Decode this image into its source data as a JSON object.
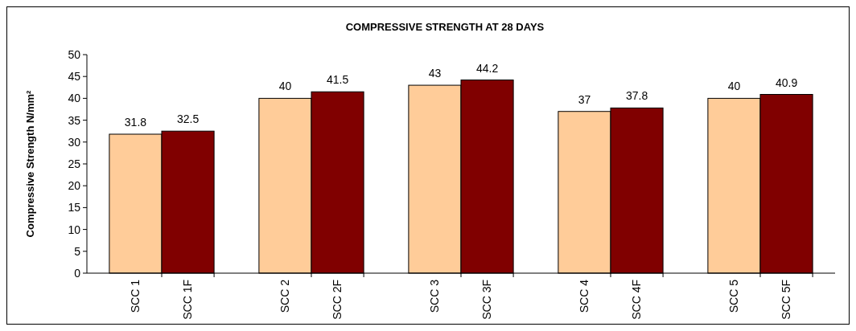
{
  "chart_data": {
    "type": "bar",
    "title": "COMPRESSIVE STRENGTH AT 28 DAYS",
    "ylabel": "Compressive Strength N/mm²",
    "categories": [
      "SCC 1",
      "SCC 1F",
      "SCC 2",
      "SCC 2F",
      "SCC 3",
      "SCC 3F",
      "SCC 4",
      "SCC 4F",
      "SCC 5",
      "SCC 5F"
    ],
    "values": [
      31.8,
      32.5,
      40,
      41.5,
      43,
      44.2,
      37,
      37.8,
      40,
      40.9
    ],
    "colors": [
      "#ffcc99",
      "#800000",
      "#ffcc99",
      "#800000",
      "#ffcc99",
      "#800000",
      "#ffcc99",
      "#800000",
      "#ffcc99",
      "#800000"
    ],
    "ylim": [
      0,
      50
    ],
    "yticks": [
      0,
      5,
      10,
      15,
      20,
      25,
      30,
      35,
      40,
      45,
      50
    ],
    "data_labels": true,
    "grid": false
  }
}
